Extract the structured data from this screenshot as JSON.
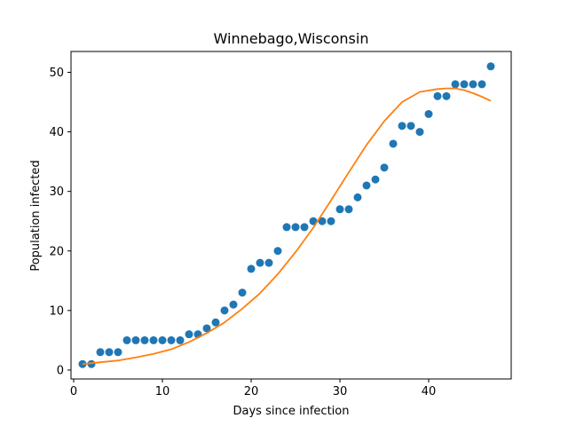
{
  "chart_data": {
    "type": "scatter",
    "title": "Winnebago,Wisconsin",
    "xlabel": "Days since infection",
    "ylabel": "Population infected",
    "xlim": [
      -0.3,
      49.3
    ],
    "ylim": [
      -1.5,
      53.5
    ],
    "xticks": [
      0,
      10,
      20,
      30,
      40
    ],
    "yticks": [
      0,
      10,
      20,
      30,
      40,
      50
    ],
    "grid": false,
    "series": [
      {
        "kind": "scatter",
        "color": "#1f77b4",
        "x": [
          1,
          2,
          3,
          4,
          5,
          6,
          7,
          8,
          9,
          10,
          11,
          12,
          13,
          14,
          15,
          16,
          17,
          18,
          19,
          20,
          21,
          22,
          23,
          24,
          25,
          26,
          27,
          28,
          29,
          30,
          31,
          32,
          33,
          34,
          35,
          36,
          37,
          38,
          39,
          40,
          41,
          42,
          43,
          44,
          45,
          46,
          47
        ],
        "y": [
          1,
          1,
          3,
          3,
          3,
          5,
          5,
          5,
          5,
          5,
          5,
          5,
          6,
          6,
          7,
          8,
          10,
          11,
          13,
          17,
          18,
          18,
          20,
          24,
          24,
          24,
          25,
          25,
          25,
          27,
          27,
          29,
          31,
          32,
          34,
          38,
          41,
          41,
          40,
          43,
          46,
          46,
          48,
          48,
          48,
          48,
          51
        ]
      },
      {
        "kind": "line",
        "color": "#ff7f0e",
        "x": [
          1,
          3,
          5,
          7,
          9,
          11,
          13,
          15,
          17,
          19,
          21,
          23,
          25,
          27,
          29,
          31,
          33,
          35,
          37,
          39,
          41,
          42,
          43,
          44,
          45,
          46,
          47
        ],
        "y": [
          1.0,
          1.3,
          1.6,
          2.1,
          2.7,
          3.5,
          4.7,
          6.2,
          8.0,
          10.3,
          12.9,
          16.1,
          19.8,
          23.9,
          28.5,
          33.2,
          37.8,
          41.8,
          45.0,
          46.7,
          47.2,
          47.3,
          47.3,
          47.0,
          46.5,
          45.9,
          45.2
        ]
      }
    ]
  }
}
